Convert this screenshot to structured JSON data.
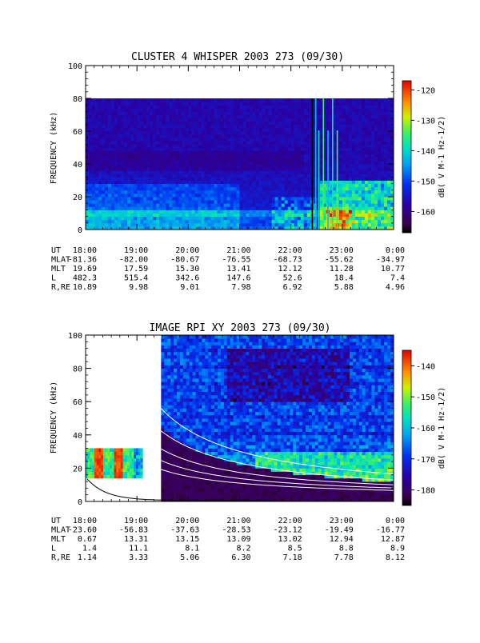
{
  "chart_data": [
    {
      "type": "heatmap",
      "title": "CLUSTER 4 WHISPER 2003 273 (09/30)",
      "ylabel": "FREQUENCY (kHz)",
      "ylim": [
        0,
        100
      ],
      "yticks": [
        "0",
        "20",
        "40",
        "60",
        "80",
        "100"
      ],
      "xlim": [
        "18:00",
        "0:00"
      ],
      "data_ceiling_khz": 80,
      "colorbar": {
        "label": "dB( V M-1 Hz-1/2)",
        "ticks": [
          "-120",
          "-130",
          "-140",
          "-150",
          "-160"
        ],
        "range": [
          -167,
          -117
        ]
      },
      "ephemeris": {
        "labels": [
          "UT",
          "MLAT",
          "MLT",
          "L",
          "R,RE"
        ],
        "columns": [
          [
            "18:00",
            "-81.36",
            "19.69",
            "482.3",
            "10.89"
          ],
          [
            "19:00",
            "-82.00",
            "17.59",
            "515.4",
            "9.98"
          ],
          [
            "20:00",
            "-80.67",
            "15.30",
            "342.6",
            "9.01"
          ],
          [
            "21:00",
            "-76.55",
            "13.41",
            "147.6",
            "7.98"
          ],
          [
            "22:00",
            "-68.73",
            "12.12",
            "52.6",
            "6.92"
          ],
          [
            "23:00",
            "-55.62",
            "11.28",
            "18.4",
            "5.88"
          ],
          [
            "0:00",
            "-34.97",
            "10.77",
            "7.4",
            "4.96"
          ]
        ]
      }
    },
    {
      "type": "heatmap",
      "title": "IMAGE RPI XY 2003 273 (09/30)",
      "ylabel": "FREQUENCY (kHz)",
      "ylim": [
        0,
        100
      ],
      "yticks": [
        "0",
        "20",
        "40",
        "60",
        "80",
        "100"
      ],
      "xlim": [
        "18:00",
        "0:00"
      ],
      "colorbar": {
        "label": "dB( V M-1 Hz-1/2)",
        "ticks": [
          "-140",
          "-150",
          "-160",
          "-170",
          "-180"
        ],
        "range": [
          -185,
          -135
        ]
      },
      "ephemeris": {
        "labels": [
          "UT",
          "MLAT",
          "MLT",
          "L",
          "R,RE"
        ],
        "columns": [
          [
            "18:00",
            "-23.60",
            "0.67",
            "1.4",
            "1.14"
          ],
          [
            "19:00",
            "-56.83",
            "13.31",
            "11.1",
            "3.33"
          ],
          [
            "20:00",
            "-37.63",
            "13.15",
            "8.1",
            "5.06"
          ],
          [
            "21:00",
            "-28.53",
            "13.09",
            "8.2",
            "6.30"
          ],
          [
            "22:00",
            "-23.12",
            "13.02",
            "8.5",
            "7.18"
          ],
          [
            "23:00",
            "-19.49",
            "12.94",
            "8.8",
            "7.78"
          ],
          [
            "0:00",
            "-16.77",
            "12.87",
            "8.9",
            "8.12"
          ]
        ]
      }
    }
  ]
}
